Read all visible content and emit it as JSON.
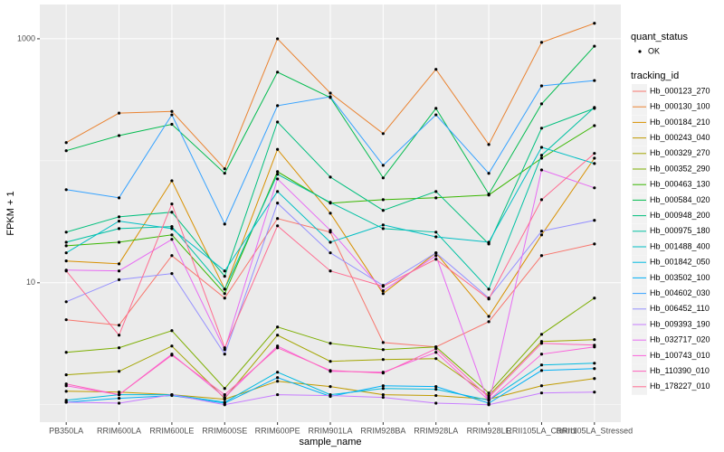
{
  "chart_data": {
    "type": "line",
    "log_y": true,
    "grid": true,
    "x_label": "sample_name",
    "y_label": "FPKM + 1",
    "categories": [
      "PB350LA",
      "RRIM600LA",
      "RRIM600LE",
      "RRIM600SE",
      "RRIM600PE",
      "RRIM901LA",
      "RRIM928BA",
      "RRIM928LA",
      "RRIM928LE",
      "RRII105LA_Control",
      "RRII105LA_Stressed"
    ],
    "ylim": [
      0.72,
      1910
    ],
    "yticks": [
      10,
      1000
    ],
    "shape_legend": {
      "title": "quant_status",
      "levels": [
        "OK"
      ]
    },
    "legend_title": "tracking_id",
    "series": [
      {
        "name": "Hb_000123_270",
        "color": "#F8766D",
        "values": [
          4.98,
          4.49,
          16.7,
          7.49,
          33.6,
          26.0,
          3.24,
          2.98,
          4.8,
          16.7,
          20.8
        ]
      },
      {
        "name": "Hb_000130_100",
        "color": "#EA8331",
        "values": [
          141,
          246,
          254,
          86,
          1000,
          359,
          167,
          562,
          136,
          935,
          1340
        ]
      },
      {
        "name": "Hb_000184_210",
        "color": "#D89000",
        "values": [
          15.1,
          14.3,
          68.6,
          8.87,
          124,
          37.2,
          8.15,
          17.6,
          5.3,
          24.7,
          105
        ]
      },
      {
        "name": "Hb_000243_040",
        "color": "#C09B00",
        "values": [
          1.29,
          1.27,
          1.21,
          1.11,
          1.56,
          1.41,
          1.21,
          1.19,
          1.11,
          1.43,
          1.64
        ]
      },
      {
        "name": "Hb_000329_270",
        "color": "#A3A500",
        "values": [
          1.76,
          1.88,
          3.03,
          1.13,
          3.72,
          2.27,
          2.35,
          2.39,
          1.19,
          3.3,
          3.42
        ]
      },
      {
        "name": "Hb_000352_290",
        "color": "#7CAE00",
        "values": [
          2.69,
          2.93,
          4.05,
          1.36,
          4.34,
          3.19,
          2.83,
          2.98,
          1.25,
          3.78,
          7.49
        ]
      },
      {
        "name": "Hb_000463_130",
        "color": "#39B600",
        "values": [
          20.1,
          21.5,
          24.7,
          8.15,
          81.5,
          45,
          48,
          49.7,
          52.4,
          105,
          194
        ]
      },
      {
        "name": "Hb_000584_020",
        "color": "#00BB4E",
        "values": [
          121,
          161,
          199,
          79,
          533,
          330,
          72.4,
          269,
          53.3,
          293,
          870
        ]
      },
      {
        "name": "Hb_000948_200",
        "color": "#00BF7D",
        "values": [
          26,
          34.7,
          37.9,
          11.3,
          208,
          73.5,
          39.2,
          56,
          20.8,
          185,
          269
        ]
      },
      {
        "name": "Hb_000975_180",
        "color": "#00C1A3",
        "values": [
          21.5,
          27.8,
          28.9,
          8.87,
          77.5,
          45.6,
          27.8,
          26,
          8.87,
          111,
          274
        ]
      },
      {
        "name": "Hb_001488_400",
        "color": "#00BFC4",
        "values": [
          17.6,
          32,
          27.8,
          12.5,
          56,
          21.5,
          29.8,
          23.8,
          21.5,
          129,
          95
        ]
      },
      {
        "name": "Hb_001842_050",
        "color": "#00BAE0",
        "values": [
          1.09,
          1.21,
          1.21,
          1.05,
          1.85,
          1.21,
          1.36,
          1.34,
          1.09,
          2.12,
          2.19
        ]
      },
      {
        "name": "Hb_003502_100",
        "color": "#00B0F6",
        "values": [
          1.05,
          1.13,
          1.19,
          1.03,
          1.67,
          1.17,
          1.43,
          1.41,
          1.03,
          1.91,
          1.98
        ]
      },
      {
        "name": "Hb_004602_030",
        "color": "#35A2FF",
        "values": [
          58,
          49.7,
          238,
          30.3,
          283,
          335,
          91.8,
          238,
          78.9,
          411,
          455
        ]
      },
      {
        "name": "Hb_006452_110",
        "color": "#9590FF",
        "values": [
          6.99,
          10.6,
          11.9,
          2.6,
          45,
          17.6,
          9.51,
          17.6,
          7.49,
          26.5,
          32.5
        ]
      },
      {
        "name": "Hb_009393_190",
        "color": "#C77CFF",
        "values": [
          1.05,
          1.03,
          1.21,
          1.0,
          1.21,
          1.19,
          1.15,
          1.03,
          1.0,
          1.25,
          1.27
        ]
      },
      {
        "name": "Hb_032717_020",
        "color": "#E76BF3",
        "values": [
          12.7,
          12.5,
          22.7,
          2.83,
          71,
          26.9,
          8.6,
          16.7,
          1.02,
          84.2,
          60
        ]
      },
      {
        "name": "Hb_100743_010",
        "color": "#FA62DB",
        "values": [
          1.43,
          1.21,
          2.6,
          1.15,
          3.03,
          1.88,
          1.85,
          2.69,
          1.09,
          2.6,
          2.98
        ]
      },
      {
        "name": "Hb_110390_010",
        "color": "#FF62BC",
        "values": [
          1.48,
          1.21,
          2.55,
          1.21,
          2.93,
          1.91,
          1.82,
          2.88,
          1.15,
          3.19,
          3.08
        ]
      },
      {
        "name": "Hb_178227_010",
        "color": "#FF6C91",
        "values": [
          12.5,
          3.72,
          44.3,
          2.93,
          29.3,
          12.5,
          9.35,
          15.6,
          7.37,
          48,
          115
        ]
      }
    ]
  }
}
